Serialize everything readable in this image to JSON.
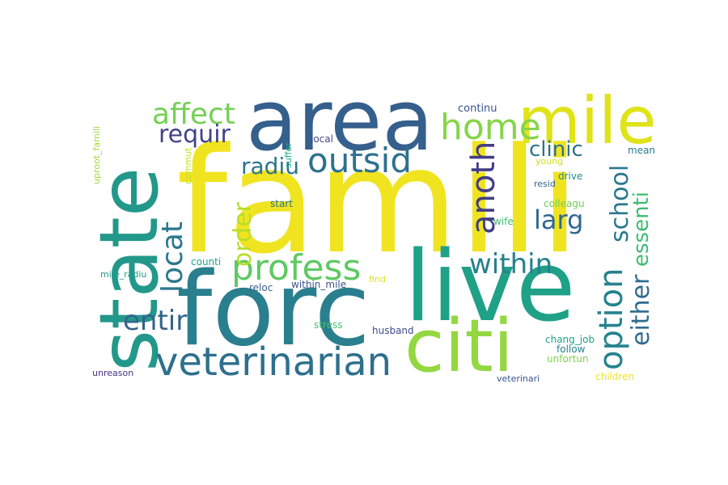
{
  "words": [
    {
      "text": "famili",
      "color": "#f0e421",
      "vertical": false
    },
    {
      "text": "forc",
      "color": "#2a7f8e",
      "vertical": false
    },
    {
      "text": "live",
      "color": "#1fa187",
      "vertical": false
    },
    {
      "text": "state",
      "color": "#22988a",
      "vertical": true
    },
    {
      "text": "area",
      "color": "#355f8d",
      "vertical": false
    },
    {
      "text": "citi",
      "color": "#93d741",
      "vertical": false
    },
    {
      "text": "mile",
      "color": "#dfe318",
      "vertical": false
    },
    {
      "text": "veterinarian",
      "color": "#2e6f8e",
      "vertical": false
    },
    {
      "text": "home",
      "color": "#86d549",
      "vertical": false
    },
    {
      "text": "profess",
      "color": "#5ec962",
      "vertical": false
    },
    {
      "text": "affect",
      "color": "#75d054",
      "vertical": false
    },
    {
      "text": "outsid",
      "color": "#2c718e",
      "vertical": false
    },
    {
      "text": "requir",
      "color": "#414287",
      "vertical": false
    },
    {
      "text": "radiu",
      "color": "#2b758e",
      "vertical": false
    },
    {
      "text": "anoth",
      "color": "#433e85",
      "vertical": true
    },
    {
      "text": "locat",
      "color": "#2a778e",
      "vertical": true
    },
    {
      "text": "order",
      "color": "#b8de29",
      "vertical": true
    },
    {
      "text": "within",
      "color": "#277f8e",
      "vertical": false
    },
    {
      "text": "larg",
      "color": "#31688e",
      "vertical": false
    },
    {
      "text": "clinic",
      "color": "#2c728e",
      "vertical": false
    },
    {
      "text": "option",
      "color": "#26828e",
      "vertical": true
    },
    {
      "text": "school",
      "color": "#2a788e",
      "vertical": true
    },
    {
      "text": "either",
      "color": "#2f6c8e",
      "vertical": true
    },
    {
      "text": "essenti",
      "color": "#3fbc73",
      "vertical": true
    },
    {
      "text": "entir",
      "color": "#33638d",
      "vertical": false
    },
    {
      "text": "continu",
      "color": "#3b528b",
      "vertical": false
    },
    {
      "text": "mean",
      "color": "#2a788e",
      "vertical": false
    },
    {
      "text": "local",
      "color": "#3e4989",
      "vertical": false
    },
    {
      "text": "uproot_famili",
      "color": "#a0da39",
      "vertical": true
    },
    {
      "text": "commut",
      "color": "#bddf26",
      "vertical": true
    },
    {
      "text": "suffer",
      "color": "#22a785",
      "vertical": true
    },
    {
      "text": "young",
      "color": "#d0e11c",
      "vertical": false
    },
    {
      "text": "resid",
      "color": "#355f8d",
      "vertical": false
    },
    {
      "text": "drive",
      "color": "#228c8d",
      "vertical": false
    },
    {
      "text": "start",
      "color": "#2c728e",
      "vertical": false
    },
    {
      "text": "colleagu",
      "color": "#6ece58",
      "vertical": false
    },
    {
      "text": "wife",
      "color": "#3dbc74",
      "vertical": false
    },
    {
      "text": "counti",
      "color": "#1fa088",
      "vertical": false
    },
    {
      "text": "mile_radiu",
      "color": "#1f9e89",
      "vertical": false
    },
    {
      "text": "reloc",
      "color": "#375b8d",
      "vertical": false
    },
    {
      "text": "within_mile",
      "color": "#3b528b",
      "vertical": false
    },
    {
      "text": "find",
      "color": "#dde318",
      "vertical": false
    },
    {
      "text": "stress",
      "color": "#4ac16d",
      "vertical": false
    },
    {
      "text": "husband",
      "color": "#3e4c8a",
      "vertical": false
    },
    {
      "text": "chang_job",
      "color": "#1fa187",
      "vertical": false
    },
    {
      "text": "follow",
      "color": "#26828e",
      "vertical": false
    },
    {
      "text": "unfortun",
      "color": "#7fd34e",
      "vertical": false
    },
    {
      "text": "children",
      "color": "#f1e51d",
      "vertical": false
    },
    {
      "text": "unreason",
      "color": "#46327e",
      "vertical": false
    },
    {
      "text": "veterinari",
      "color": "#39568c",
      "vertical": false
    }
  ]
}
